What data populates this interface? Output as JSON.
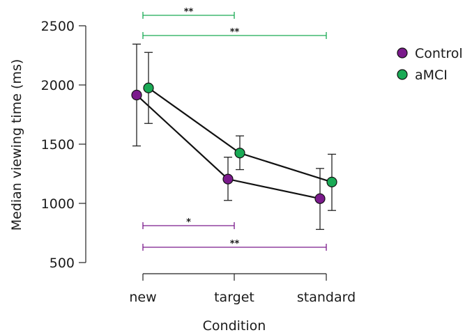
{
  "chart_data": {
    "type": "line",
    "title": "",
    "xlabel": "Condition",
    "ylabel": "Median viewing time (ms)",
    "categories": [
      "new",
      "target",
      "standard"
    ],
    "ylim": [
      500,
      2500
    ],
    "yticks": [
      500,
      1000,
      1500,
      2000,
      2500
    ],
    "series": [
      {
        "name": "Control",
        "color": "#7b1a8c",
        "values": [
          1915,
          1205,
          1040
        ],
        "error_low": [
          1485,
          1025,
          780
        ],
        "error_high": [
          2345,
          1390,
          1295
        ]
      },
      {
        "name": "aMCI",
        "color": "#1aaa55",
        "values": [
          1975,
          1425,
          1180
        ],
        "error_low": [
          1675,
          1285,
          940
        ],
        "error_high": [
          2275,
          1570,
          1415
        ]
      }
    ],
    "legend_position": "top-right",
    "significance": [
      {
        "group": "aMCI",
        "color": "#1aaa55",
        "from": "new",
        "to": "target",
        "label": "**"
      },
      {
        "group": "aMCI",
        "color": "#1aaa55",
        "from": "new",
        "to": "standard",
        "label": "**"
      },
      {
        "group": "Control",
        "color": "#7b1a8c",
        "from": "new",
        "to": "target",
        "label": "*"
      },
      {
        "group": "Control",
        "color": "#7b1a8c",
        "from": "new",
        "to": "standard",
        "label": "**"
      }
    ]
  }
}
